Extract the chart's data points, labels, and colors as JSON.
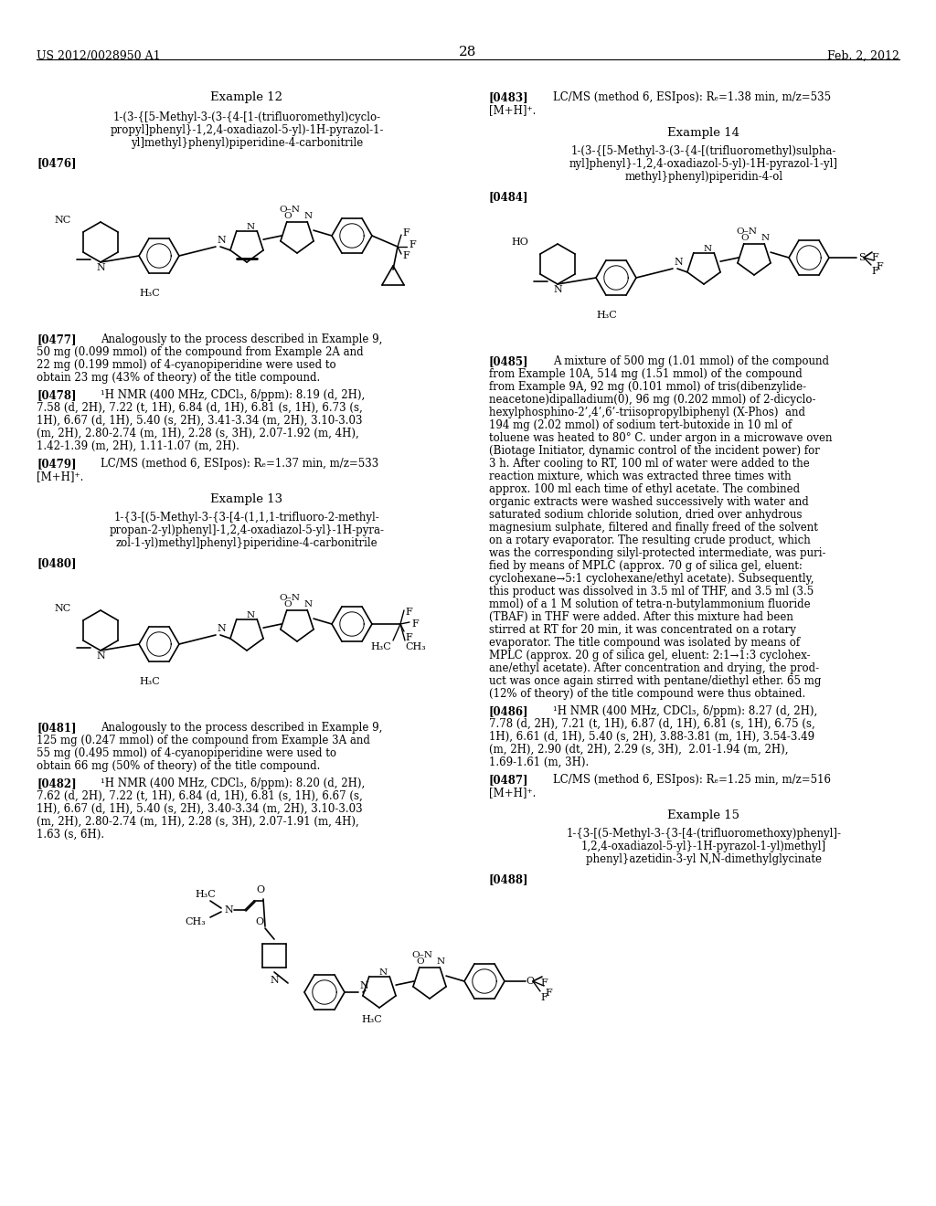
{
  "bg": "#ffffff",
  "header_left": "US 2012/0028950 A1",
  "header_right": "Feb. 2, 2012",
  "page_num": "28"
}
